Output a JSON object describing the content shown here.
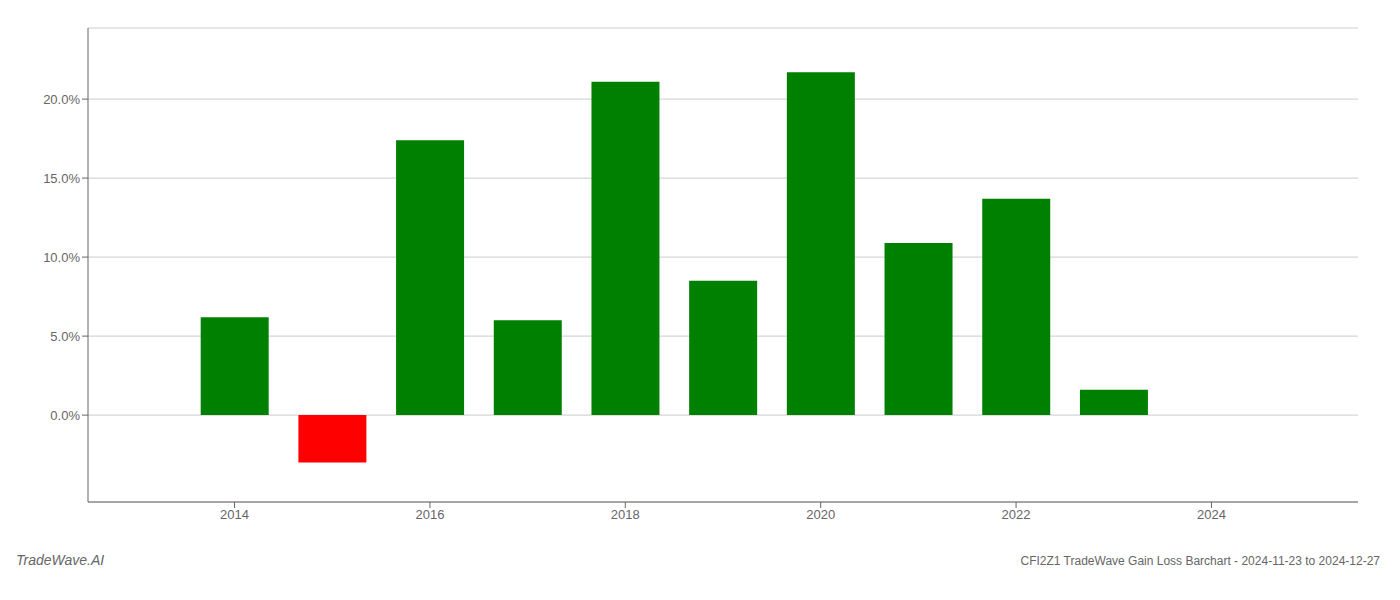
{
  "chart_data": {
    "type": "bar",
    "title": "CFI2Z1 TradeWave Gain Loss Barchart - 2024-11-23 to 2024-12-27",
    "annotations": [
      "TradeWave.AI"
    ],
    "x": [
      2014,
      2015,
      2016,
      2017,
      2018,
      2019,
      2020,
      2021,
      2022,
      2023
    ],
    "values": [
      0.062,
      -0.03,
      0.174,
      0.06,
      0.211,
      0.085,
      0.217,
      0.109,
      0.137,
      0.016
    ],
    "colors": [
      "#008000",
      "#ff0000",
      "#008000",
      "#008000",
      "#008000",
      "#008000",
      "#008000",
      "#008000",
      "#008000",
      "#008000"
    ],
    "xlim": [
      2012.5,
      2025.5
    ],
    "xticks": [
      2014,
      2016,
      2018,
      2020,
      2022,
      2024
    ],
    "ylim": [
      -0.055,
      0.245
    ],
    "yticks": [
      {
        "value": 0.0,
        "label": "0.0%"
      },
      {
        "value": 0.05,
        "label": "5.0%"
      },
      {
        "value": 0.1,
        "label": "10.0%"
      },
      {
        "value": 0.15,
        "label": "15.0%"
      },
      {
        "value": 0.2,
        "label": "20.0%"
      }
    ],
    "grid": "y"
  }
}
